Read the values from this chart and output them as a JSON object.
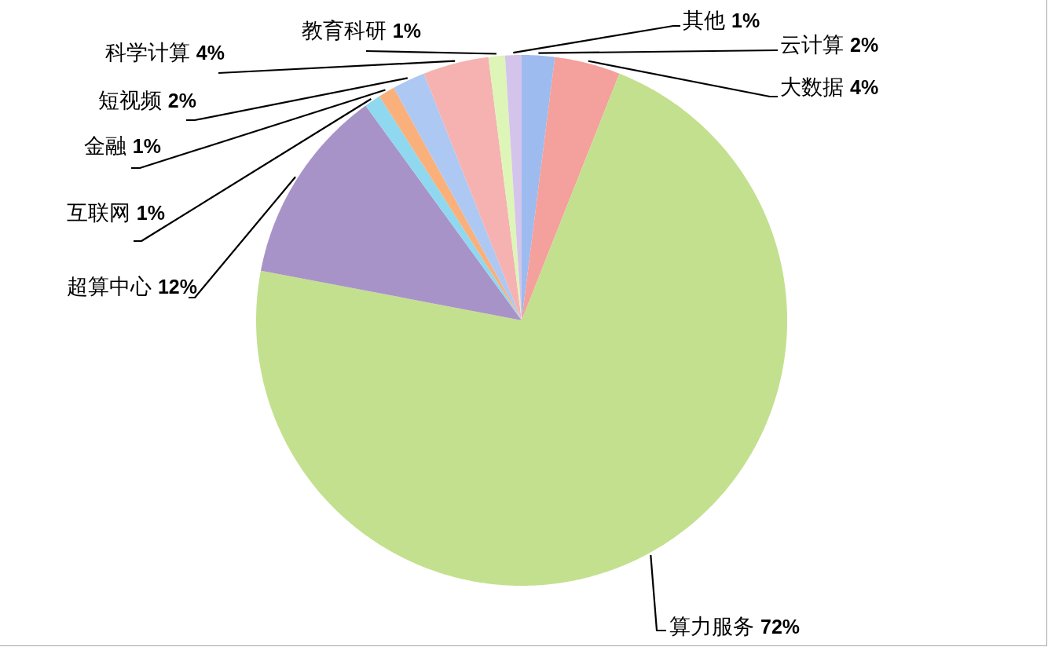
{
  "chart_data": {
    "type": "pie",
    "categories": [
      "云计算",
      "大数据",
      "算力服务",
      "超算中心",
      "互联网",
      "金融",
      "短视频",
      "科学计算",
      "教育科研",
      "其他"
    ],
    "values": [
      2,
      4,
      72,
      12,
      1,
      1,
      2,
      4,
      1,
      1
    ],
    "value_labels": [
      "2%",
      "4%",
      "72%",
      "12%",
      "1%",
      "1%",
      "2%",
      "4%",
      "1%",
      "1%"
    ],
    "colors": [
      "#9dbbef",
      "#f4a09c",
      "#c3e08e",
      "#a893c8",
      "#8fd8f0",
      "#f9b07a",
      "#adc8f3",
      "#f6b2b0",
      "#def5b8",
      "#d4c4ec"
    ]
  }
}
